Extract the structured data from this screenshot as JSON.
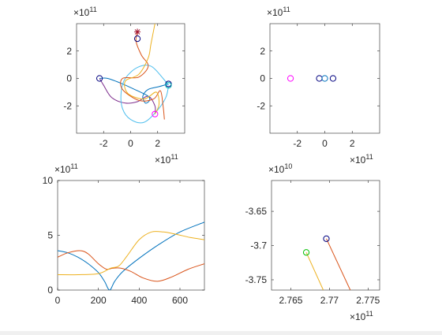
{
  "figure": {
    "background": "#ffffff",
    "axis_color": "#262626"
  },
  "chart_data": [
    {
      "id": "orbits-full",
      "type": "line",
      "title": "",
      "xlim": [
        -4.0,
        4.0
      ],
      "ylim": [
        -4.0,
        4.0
      ],
      "xticks": [
        -2,
        0,
        2
      ],
      "yticks": [
        -2,
        0,
        2
      ],
      "xtick_labels": [
        "-2",
        "0",
        "2"
      ],
      "ytick_labels": [
        "-2",
        "0",
        "2"
      ],
      "x_exponent": "11",
      "y_exponent": "11",
      "exponent_base": "×10",
      "grid": false,
      "legend": "none",
      "series": [
        {
          "color": "#7e2f8e",
          "points": [
            [
              -2.3,
              0.0
            ],
            [
              -2.0,
              -0.5
            ],
            [
              -1.4,
              -1.4
            ],
            [
              -0.4,
              -1.8
            ],
            [
              0.5,
              -1.7
            ],
            [
              1.3,
              -1.3
            ],
            [
              1.8,
              -2.0
            ],
            [
              1.8,
              -2.6
            ]
          ]
        },
        {
          "color": "#0072bd",
          "points": [
            [
              -2.3,
              0.0
            ],
            [
              -1.7,
              0.0
            ],
            [
              -0.6,
              -0.4
            ],
            [
              0.5,
              -0.9
            ],
            [
              1.3,
              -1.3
            ],
            [
              1.4,
              -1.6
            ],
            [
              1.1,
              -1.8
            ],
            [
              0.9,
              -1.3
            ],
            [
              1.3,
              -0.8
            ],
            [
              2.1,
              -0.6
            ],
            [
              2.8,
              -0.4
            ]
          ]
        },
        {
          "color": "#4dbeee",
          "points": [
            [
              2.8,
              -0.6
            ],
            [
              2.6,
              -1.4
            ],
            [
              2.0,
              -2.3
            ],
            [
              1.0,
              -3.2
            ],
            [
              0.0,
              -3.0
            ],
            [
              -0.6,
              -2.2
            ],
            [
              -0.7,
              -1.0
            ],
            [
              -0.4,
              0.0
            ],
            [
              0.5,
              0.8
            ],
            [
              1.5,
              0.9
            ],
            [
              2.4,
              0.0
            ],
            [
              2.8,
              -0.5
            ]
          ]
        },
        {
          "color": "#d95319",
          "points": [
            [
              0.5,
              3.4
            ],
            [
              0.4,
              2.7
            ],
            [
              0.8,
              1.7
            ],
            [
              1.3,
              0.9
            ],
            [
              0.6,
              0.1
            ],
            [
              -0.6,
              0.0
            ],
            [
              -0.6,
              -0.8
            ],
            [
              0.6,
              -1.6
            ],
            [
              1.7,
              -1.5
            ],
            [
              2.2,
              -0.9
            ],
            [
              2.4,
              -2.0
            ],
            [
              2.5,
              -3.0
            ]
          ]
        },
        {
          "color": "#edb120",
          "points": [
            [
              1.8,
              4.0
            ],
            [
              1.5,
              2.5
            ],
            [
              1.3,
              1.5
            ],
            [
              0.6,
              0.3
            ],
            [
              -0.4,
              -0.2
            ],
            [
              -0.2,
              -1.1
            ],
            [
              1.0,
              -1.5
            ],
            [
              1.9,
              -1.0
            ],
            [
              2.1,
              -1.9
            ],
            [
              1.8,
              -2.6
            ]
          ]
        }
      ],
      "markers": [
        {
          "shape": "circle",
          "color": "#00007f",
          "x": -2.3,
          "y": 0.0
        },
        {
          "shape": "circle",
          "color": "#00007f",
          "x": 0.5,
          "y": 2.9
        },
        {
          "shape": "star",
          "color": "#a2142f",
          "x": 0.5,
          "y": 3.4
        },
        {
          "shape": "circle",
          "color": "#00007f",
          "x": 2.8,
          "y": -0.4
        },
        {
          "shape": "circle",
          "color": "#00b5b5",
          "x": 2.8,
          "y": -0.5
        },
        {
          "shape": "circle",
          "color": "#ff00ff",
          "x": 1.8,
          "y": -2.6
        }
      ]
    },
    {
      "id": "initial-positions",
      "type": "scatter",
      "title": "",
      "xlim": [
        -4.0,
        4.0
      ],
      "ylim": [
        -4.0,
        4.0
      ],
      "xticks": [
        -2,
        0,
        2
      ],
      "yticks": [
        -2,
        0,
        2
      ],
      "xtick_labels": [
        "-2",
        "0",
        "2"
      ],
      "ytick_labels": [
        "-2",
        "0",
        "2"
      ],
      "x_exponent": "11",
      "y_exponent": "11",
      "exponent_base": "×10",
      "grid": false,
      "legend": "none",
      "series": [],
      "markers": [
        {
          "shape": "circle",
          "color": "#ff00ff",
          "x": -2.5,
          "y": 0.0
        },
        {
          "shape": "circle",
          "color": "#00007f",
          "x": -0.4,
          "y": 0.0
        },
        {
          "shape": "circle",
          "color": "#0072bd",
          "x": 0.0,
          "y": 0.0
        },
        {
          "shape": "circle",
          "color": "#00007f",
          "x": 0.6,
          "y": 0.0
        }
      ]
    },
    {
      "id": "distance-vs-time",
      "type": "line",
      "title": "",
      "xlim": [
        0,
        720
      ],
      "ylim": [
        0,
        10
      ],
      "xticks": [
        0,
        200,
        400,
        600
      ],
      "yticks": [
        0,
        5,
        10
      ],
      "xtick_labels": [
        "0",
        "200",
        "400",
        "600"
      ],
      "ytick_labels": [
        "0",
        "5",
        "10"
      ],
      "x_exponent": "",
      "y_exponent": "11",
      "exponent_base": "×10",
      "grid": false,
      "legend": "none",
      "series": [
        {
          "color": "#0072bd",
          "points": [
            [
              0,
              3.6
            ],
            [
              50,
              3.4
            ],
            [
              100,
              3.0
            ],
            [
              150,
              2.4
            ],
            [
              200,
              1.6
            ],
            [
              230,
              0.8
            ],
            [
              255,
              0.0
            ],
            [
              280,
              0.8
            ],
            [
              320,
              1.7
            ],
            [
              400,
              2.9
            ],
            [
              500,
              4.2
            ],
            [
              600,
              5.3
            ],
            [
              720,
              6.2
            ]
          ]
        },
        {
          "color": "#d95319",
          "points": [
            [
              0,
              3.0
            ],
            [
              50,
              3.4
            ],
            [
              110,
              3.6
            ],
            [
              150,
              3.3
            ],
            [
              200,
              2.4
            ],
            [
              240,
              1.9
            ],
            [
              270,
              2.0
            ],
            [
              310,
              2.0
            ],
            [
              360,
              1.7
            ],
            [
              420,
              1.1
            ],
            [
              490,
              0.8
            ],
            [
              560,
              1.2
            ],
            [
              640,
              1.9
            ],
            [
              720,
              2.4
            ]
          ]
        },
        {
          "color": "#edb120",
          "points": [
            [
              0,
              1.4
            ],
            [
              100,
              1.4
            ],
            [
              200,
              1.5
            ],
            [
              260,
              2.0
            ],
            [
              300,
              2.2
            ],
            [
              340,
              3.1
            ],
            [
              400,
              4.6
            ],
            [
              460,
              5.3
            ],
            [
              520,
              5.3
            ],
            [
              580,
              5.1
            ],
            [
              650,
              4.8
            ],
            [
              720,
              4.6
            ]
          ]
        }
      ],
      "markers": []
    },
    {
      "id": "zoom-detail",
      "type": "line",
      "title": "",
      "xlim": [
        2.7625,
        2.7765
      ],
      "ylim": [
        -3.765,
        -3.605
      ],
      "xticks": [
        2.765,
        2.77,
        2.775
      ],
      "yticks": [
        -3.75,
        -3.7,
        -3.65
      ],
      "xtick_labels": [
        "2.765",
        "2.77",
        "2.775"
      ],
      "ytick_labels": [
        "-3.75",
        "-3.7",
        "-3.65"
      ],
      "x_exponent": "11",
      "y_exponent": "10",
      "exponent_base": "×10",
      "grid": false,
      "legend": "none",
      "series": [
        {
          "color": "#d95319",
          "points": [
            [
              2.7696,
              -3.69
            ],
            [
              2.7727,
              -3.765
            ]
          ]
        },
        {
          "color": "#edb120",
          "points": [
            [
              2.767,
              -3.71
            ],
            [
              2.7692,
              -3.765
            ]
          ]
        }
      ],
      "markers": [
        {
          "shape": "circle",
          "color": "#00007f",
          "x": 2.7696,
          "y": -3.69
        },
        {
          "shape": "circle",
          "color": "#00bf00",
          "x": 2.767,
          "y": -3.71
        }
      ]
    }
  ]
}
